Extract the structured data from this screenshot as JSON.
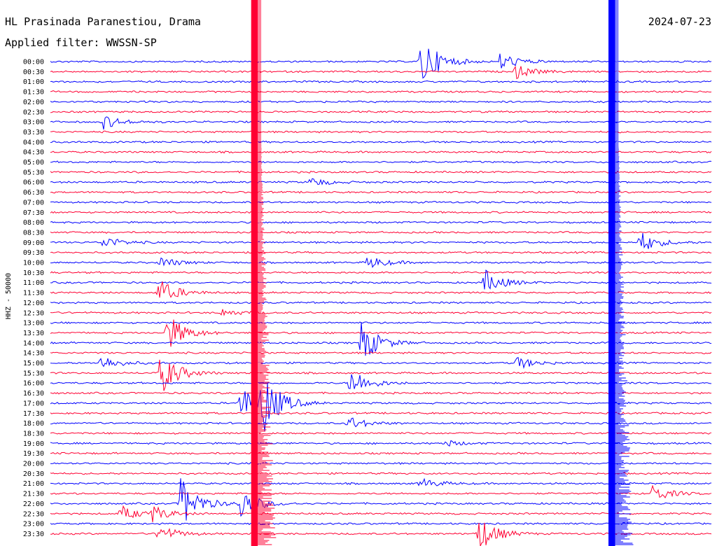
{
  "chart_data": {
    "type": "line",
    "title": "HL Prasinada Paranestiou, Drama",
    "subtitle": "Applied filter: WWSSN-SP",
    "date": "2024-07-23",
    "ylabel": "HHZ - 50000",
    "tick_labels": [
      "00:00",
      "00:30",
      "01:00",
      "01:30",
      "02:00",
      "02:30",
      "03:00",
      "03:30",
      "04:00",
      "04:30",
      "05:00",
      "05:30",
      "06:00",
      "06:30",
      "07:00",
      "07:30",
      "08:00",
      "08:30",
      "09:00",
      "09:30",
      "10:00",
      "10:30",
      "11:00",
      "11:30",
      "12:00",
      "12:30",
      "13:00",
      "13:30",
      "14:00",
      "14:30",
      "15:00",
      "15:30",
      "16:00",
      "16:30",
      "17:00",
      "17:30",
      "18:00",
      "18:30",
      "19:00",
      "19:30",
      "20:00",
      "20:30",
      "21:00",
      "21:30",
      "22:00",
      "22:30",
      "23:00",
      "23:30"
    ],
    "colors": [
      "#0000ff",
      "#ff0033"
    ],
    "grid": false,
    "x_range_minutes": [
      0,
      30
    ],
    "saturated_columns_minutes": [
      {
        "start": 9.1,
        "end": 9.4,
        "from_row": 0,
        "to_row": 47,
        "color": "#ff0033"
      },
      {
        "start": 25.3,
        "end": 25.6,
        "from_row": 0,
        "to_row": 47,
        "color": "#0000ff"
      }
    ],
    "events": [
      {
        "row": 0,
        "minute": 16.8,
        "amp": 3.5
      },
      {
        "row": 0,
        "minute": 20.4,
        "amp": 1.2
      },
      {
        "row": 1,
        "minute": 21.1,
        "amp": 0.9
      },
      {
        "row": 6,
        "minute": 2.4,
        "amp": 0.9
      },
      {
        "row": 12,
        "minute": 11.8,
        "amp": 0.6
      },
      {
        "row": 18,
        "minute": 2.4,
        "amp": 0.8
      },
      {
        "row": 18,
        "minute": 26.7,
        "amp": 1.5
      },
      {
        "row": 20,
        "minute": 5.0,
        "amp": 0.7
      },
      {
        "row": 20,
        "minute": 14.4,
        "amp": 0.9
      },
      {
        "row": 22,
        "minute": 19.7,
        "amp": 1.6
      },
      {
        "row": 23,
        "minute": 4.9,
        "amp": 1.8
      },
      {
        "row": 25,
        "minute": 7.8,
        "amp": 0.5
      },
      {
        "row": 27,
        "minute": 5.3,
        "amp": 2.5
      },
      {
        "row": 28,
        "minute": 14.1,
        "amp": 2.8
      },
      {
        "row": 30,
        "minute": 2.3,
        "amp": 1.0
      },
      {
        "row": 30,
        "minute": 21.1,
        "amp": 0.9
      },
      {
        "row": 31,
        "minute": 5.0,
        "amp": 2.8
      },
      {
        "row": 32,
        "minute": 13.6,
        "amp": 2.0
      },
      {
        "row": 34,
        "minute": 8.6,
        "amp": 2.2
      },
      {
        "row": 34,
        "minute": 9.6,
        "amp": 4.0
      },
      {
        "row": 36,
        "minute": 13.5,
        "amp": 0.9
      },
      {
        "row": 38,
        "minute": 17.9,
        "amp": 0.4
      },
      {
        "row": 42,
        "minute": 16.8,
        "amp": 0.7
      },
      {
        "row": 43,
        "minute": 27.3,
        "amp": 1.1
      },
      {
        "row": 44,
        "minute": 5.9,
        "amp": 3.5
      },
      {
        "row": 44,
        "minute": 8.6,
        "amp": 2.0
      },
      {
        "row": 45,
        "minute": 3.2,
        "amp": 1.0
      },
      {
        "row": 45,
        "minute": 4.6,
        "amp": 1.0
      },
      {
        "row": 47,
        "minute": 4.9,
        "amp": 1.2
      },
      {
        "row": 47,
        "minute": 19.4,
        "amp": 2.4
      }
    ]
  }
}
